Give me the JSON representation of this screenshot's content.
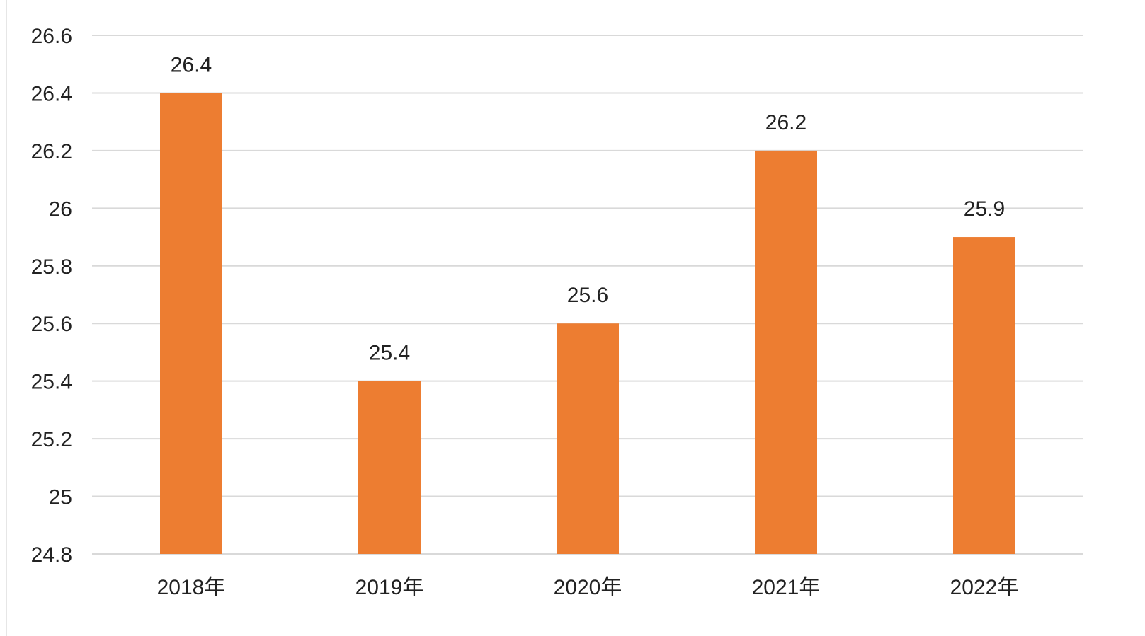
{
  "chart_data": {
    "type": "bar",
    "title": "",
    "categories": [
      "2018年",
      "2019年",
      "2020年",
      "2021年",
      "2022年"
    ],
    "values": [
      26.4,
      25.4,
      25.6,
      26.2,
      25.9
    ],
    "data_labels": [
      "26.4",
      "25.4",
      "25.6",
      "26.2",
      "25.9"
    ],
    "ylim": [
      24.8,
      26.6
    ],
    "yticks": [
      "26.6",
      "26.4",
      "26.2",
      "26",
      "25.8",
      "25.6",
      "25.4",
      "25.2",
      "25",
      "24.8"
    ],
    "ytick_values": [
      26.6,
      26.4,
      26.2,
      26,
      25.8,
      25.6,
      25.4,
      25.2,
      25,
      24.8
    ],
    "xlabel": "",
    "ylabel": "",
    "grid": true,
    "legend": "none",
    "bar_color": "#ed7d31",
    "grid_color": "#d9d9d9",
    "text_color": "#222222"
  }
}
